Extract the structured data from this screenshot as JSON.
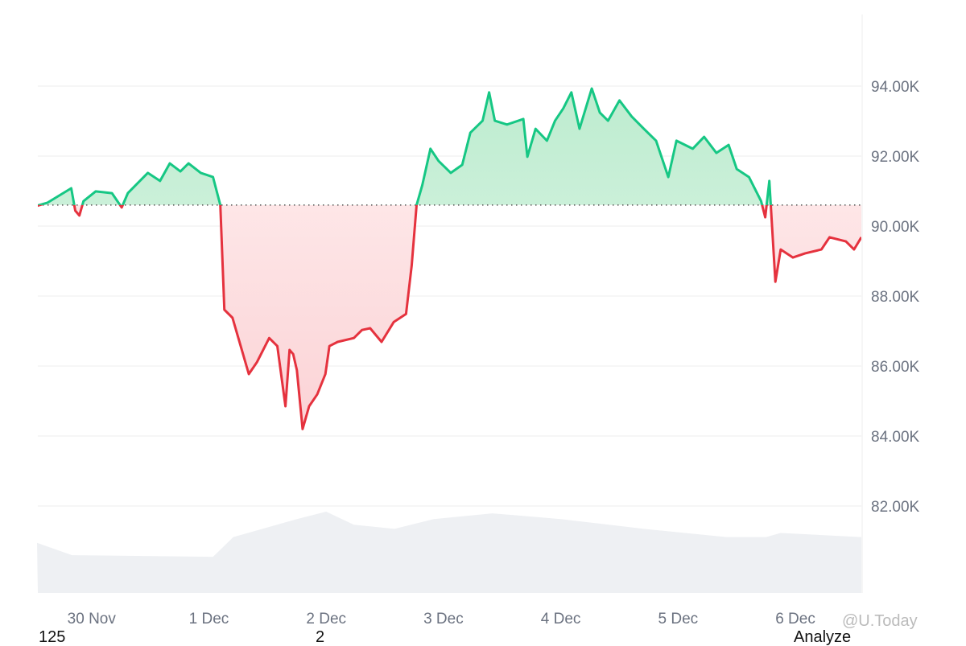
{
  "chart_data": {
    "type": "area",
    "title": "",
    "xlabel": "",
    "ylabel": "",
    "ylim": [
      80000,
      96000
    ],
    "yticks": [
      82000,
      84000,
      86000,
      88000,
      90000,
      92000,
      94000
    ],
    "ytick_labels": [
      "82.00K",
      "84.00K",
      "86.00K",
      "88.00K",
      "90.00K",
      "92.00K",
      "94.00K"
    ],
    "xlim": [
      "29 Nov 13:00",
      "6 Dec 13:30"
    ],
    "xtick_labels": [
      "30 Nov",
      "1 Dec",
      "2 Dec",
      "3 Dec",
      "4 Dec",
      "5 Dec",
      "6 Dec"
    ],
    "baseline": 90600,
    "grid": true,
    "colors": {
      "above": "#16c784",
      "below": "#e5323e",
      "above_fill": "#c9f0dc",
      "below_fill": "#fde2e3",
      "volume": "#eef0f3",
      "grid": "#ececec"
    },
    "series": [
      {
        "points": [
          [
            "29 Nov 12:50",
            90580
          ],
          [
            "29 Nov 15:00",
            90670
          ],
          [
            "29 Nov 18:10",
            90940
          ],
          [
            "29 Nov 19:50",
            91080
          ],
          [
            "29 Nov 20:40",
            90440
          ],
          [
            "29 Nov 21:30",
            90300
          ],
          [
            "29 Nov 22:20",
            90710
          ],
          [
            "30 Nov 00:50",
            90990
          ],
          [
            "30 Nov 04:10",
            90940
          ],
          [
            "30 Nov 06:10",
            90530
          ],
          [
            "30 Nov 07:25",
            90940
          ],
          [
            "30 Nov 11:30",
            91520
          ],
          [
            "30 Nov 14:00",
            91290
          ],
          [
            "30 Nov 16:00",
            91790
          ],
          [
            "30 Nov 18:10",
            91560
          ],
          [
            "30 Nov 19:50",
            91790
          ],
          [
            "30 Nov 22:20",
            91520
          ],
          [
            "1 Dec 00:50",
            91400
          ],
          [
            "1 Dec 02:20",
            90600
          ],
          [
            "1 Dec 03:10",
            87610
          ],
          [
            "1 Dec 04:50",
            87380
          ],
          [
            "1 Dec 06:30",
            86570
          ],
          [
            "1 Dec 08:10",
            85770
          ],
          [
            "1 Dec 09:50",
            86110
          ],
          [
            "1 Dec 12:20",
            86800
          ],
          [
            "1 Dec 14:00",
            86570
          ],
          [
            "1 Dec 15:40",
            84850
          ],
          [
            "1 Dec 16:30",
            86460
          ],
          [
            "1 Dec 17:15",
            86340
          ],
          [
            "1 Dec 18:00",
            85880
          ],
          [
            "1 Dec 19:10",
            84200
          ],
          [
            "1 Dec 20:30",
            84850
          ],
          [
            "1 Dec 22:10",
            85190
          ],
          [
            "1 Dec 23:50",
            85770
          ],
          [
            "2 Dec 00:40",
            86570
          ],
          [
            "2 Dec 02:20",
            86690
          ],
          [
            "2 Dec 05:40",
            86800
          ],
          [
            "2 Dec 07:20",
            87030
          ],
          [
            "2 Dec 09:00",
            87080
          ],
          [
            "2 Dec 11:20",
            86690
          ],
          [
            "2 Dec 13:50",
            87260
          ],
          [
            "2 Dec 16:20",
            87490
          ],
          [
            "2 Dec 17:30",
            88870
          ],
          [
            "2 Dec 18:30",
            90600
          ],
          [
            "2 Dec 19:40",
            91170
          ],
          [
            "2 Dec 21:20",
            92210
          ],
          [
            "2 Dec 23:00",
            91860
          ],
          [
            "3 Dec 01:30",
            91520
          ],
          [
            "3 Dec 03:50",
            91750
          ],
          [
            "3 Dec 05:30",
            92670
          ],
          [
            "3 Dec 08:00",
            93010
          ],
          [
            "3 Dec 09:20",
            93820
          ],
          [
            "3 Dec 10:30",
            93010
          ],
          [
            "3 Dec 13:00",
            92900
          ],
          [
            "3 Dec 16:20",
            93060
          ],
          [
            "3 Dec 17:10",
            91980
          ],
          [
            "3 Dec 18:50",
            92780
          ],
          [
            "3 Dec 21:10",
            92440
          ],
          [
            "3 Dec 22:50",
            93010
          ],
          [
            "4 Dec 00:30",
            93360
          ],
          [
            "4 Dec 02:10",
            93820
          ],
          [
            "4 Dec 03:50",
            92780
          ],
          [
            "4 Dec 06:20",
            93930
          ],
          [
            "4 Dec 08:00",
            93240
          ],
          [
            "4 Dec 09:40",
            93010
          ],
          [
            "4 Dec 12:00",
            93590
          ],
          [
            "4 Dec 14:30",
            93130
          ],
          [
            "4 Dec 17:00",
            92780
          ],
          [
            "4 Dec 19:30",
            92440
          ],
          [
            "4 Dec 22:00",
            91400
          ],
          [
            "4 Dec 23:40",
            92440
          ],
          [
            "5 Dec 03:00",
            92210
          ],
          [
            "5 Dec 05:20",
            92550
          ],
          [
            "5 Dec 07:50",
            92090
          ],
          [
            "5 Dec 10:20",
            92320
          ],
          [
            "5 Dec 12:00",
            91630
          ],
          [
            "5 Dec 14:30",
            91400
          ],
          [
            "5 Dec 17:00",
            90710
          ],
          [
            "5 Dec 17:50",
            90250
          ],
          [
            "5 Dec 18:40",
            91290
          ],
          [
            "5 Dec 19:55",
            88410
          ],
          [
            "5 Dec 21:00",
            89330
          ],
          [
            "5 Dec 23:30",
            89100
          ],
          [
            "6 Dec 02:00",
            89220
          ],
          [
            "6 Dec 05:20",
            89330
          ],
          [
            "6 Dec 07:00",
            89680
          ],
          [
            "6 Dec 10:20",
            89560
          ],
          [
            "6 Dec 12:00",
            89330
          ],
          [
            "6 Dec 13:30",
            89680
          ]
        ]
      }
    ],
    "volume_relative": [
      [
        "29 Nov 12:50",
        0.61
      ],
      [
        "29 Nov 20:00",
        0.46
      ],
      [
        "1 Dec 00:50",
        0.44
      ],
      [
        "1 Dec 05:00",
        0.68
      ],
      [
        "1 Dec 18:00",
        0.9
      ],
      [
        "2 Dec 00:00",
        0.99
      ],
      [
        "2 Dec 05:40",
        0.83
      ],
      [
        "2 Dec 14:00",
        0.78
      ],
      [
        "2 Dec 22:00",
        0.9
      ],
      [
        "3 Dec 10:00",
        0.97
      ],
      [
        "4 Dec 00:00",
        0.9
      ],
      [
        "4 Dec 17:00",
        0.78
      ],
      [
        "5 Dec 10:00",
        0.68
      ],
      [
        "5 Dec 18:00",
        0.68
      ],
      [
        "5 Dec 21:00",
        0.73
      ],
      [
        "6 Dec 13:30",
        0.68
      ]
    ]
  },
  "footer": {
    "left": "125",
    "middle": "2",
    "right": "Analyze"
  },
  "watermark": "@U.Today"
}
